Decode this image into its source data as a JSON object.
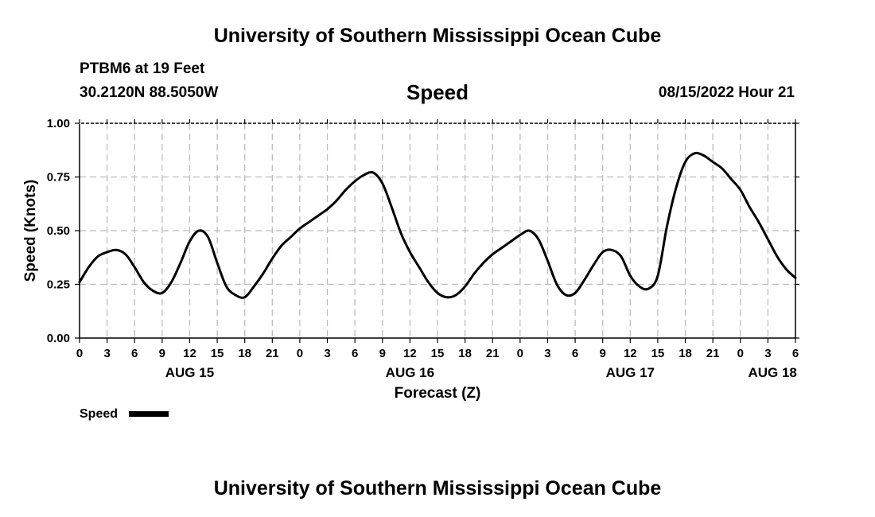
{
  "header": {
    "title": "University of Southern Mississippi Ocean Cube",
    "station": "PTBM6 at 19 Feet",
    "coordinates": "30.2120N  88.5050W",
    "variable": "Speed",
    "datetime": "08/15/2022 Hour 21"
  },
  "footer": {
    "title": "University of Southern Mississippi Ocean Cube"
  },
  "chart_data": {
    "type": "line",
    "title": "Speed",
    "xlabel": "Forecast (Z)",
    "ylabel": "Speed (Knots)",
    "xlim": [
      0,
      78
    ],
    "ylim": [
      0,
      1
    ],
    "grid": true,
    "legend": "bottom-left",
    "yticks": [
      0,
      0.25,
      0.5,
      0.75,
      1.0
    ],
    "ytick_labels": [
      "0.00",
      "0.25",
      "0.50",
      "0.75",
      "1.00"
    ],
    "xticks": [
      0,
      3,
      6,
      9,
      12,
      15,
      18,
      21,
      24,
      27,
      30,
      33,
      36,
      39,
      42,
      45,
      48,
      51,
      54,
      57,
      60,
      63,
      66,
      69,
      72,
      75,
      78
    ],
    "xtick_labels": [
      "0",
      "3",
      "6",
      "9",
      "12",
      "15",
      "18",
      "21",
      "0",
      "3",
      "6",
      "9",
      "12",
      "15",
      "18",
      "21",
      "0",
      "3",
      "6",
      "9",
      "12",
      "15",
      "18",
      "21",
      "0",
      "3",
      "6"
    ],
    "date_labels": [
      {
        "x": 12,
        "label": "AUG 15"
      },
      {
        "x": 36,
        "label": "AUG 16"
      },
      {
        "x": 60,
        "label": "AUG 17"
      },
      {
        "x": 75.5,
        "label": "AUG 18"
      }
    ],
    "series": [
      {
        "name": "Speed",
        "color": "#000000",
        "x": [
          0,
          1,
          2,
          3,
          4,
          5,
          6,
          7,
          8,
          9,
          10,
          11,
          12,
          13,
          14,
          15,
          16,
          17,
          18,
          19,
          20,
          21,
          22,
          23,
          24,
          25,
          26,
          27,
          28,
          29,
          30,
          31,
          32,
          33,
          34,
          35,
          36,
          37,
          38,
          39,
          40,
          41,
          42,
          43,
          44,
          45,
          46,
          47,
          48,
          49,
          50,
          51,
          52,
          53,
          54,
          55,
          56,
          57,
          58,
          59,
          60,
          61,
          62,
          63,
          64,
          65,
          66,
          67,
          68,
          69,
          70,
          71,
          72,
          73,
          74,
          75,
          76,
          77,
          78
        ],
        "values": [
          0.26,
          0.33,
          0.38,
          0.4,
          0.41,
          0.39,
          0.33,
          0.26,
          0.22,
          0.21,
          0.26,
          0.35,
          0.45,
          0.5,
          0.47,
          0.35,
          0.24,
          0.2,
          0.19,
          0.24,
          0.3,
          0.37,
          0.43,
          0.47,
          0.51,
          0.54,
          0.57,
          0.6,
          0.64,
          0.69,
          0.73,
          0.76,
          0.77,
          0.72,
          0.61,
          0.49,
          0.4,
          0.33,
          0.26,
          0.21,
          0.19,
          0.2,
          0.24,
          0.3,
          0.35,
          0.39,
          0.42,
          0.45,
          0.48,
          0.5,
          0.46,
          0.36,
          0.25,
          0.2,
          0.21,
          0.27,
          0.34,
          0.4,
          0.41,
          0.38,
          0.29,
          0.24,
          0.23,
          0.29,
          0.52,
          0.7,
          0.82,
          0.86,
          0.85,
          0.82,
          0.79,
          0.74,
          0.69,
          0.61,
          0.54,
          0.46,
          0.38,
          0.32,
          0.28
        ]
      }
    ]
  }
}
